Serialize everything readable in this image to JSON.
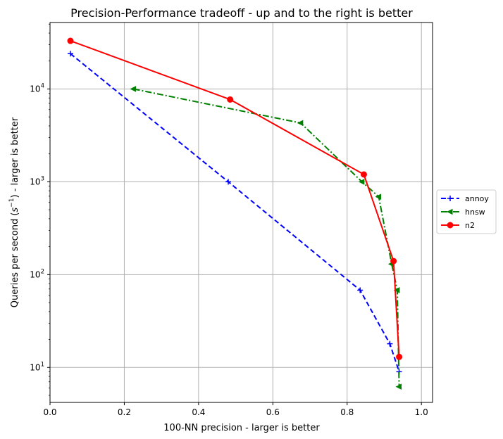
{
  "chart_data": {
    "type": "line",
    "title": "Precision-Performance tradeoff - up and to the right is better",
    "xlabel": "100-NN precision - larger is better",
    "ylabel_main": "Queries per second (",
    "ylabel_sym": "s",
    "ylabel_exp": "−1",
    "ylabel_tail": ") - larger is better",
    "xlim": [
      0.0,
      1.03
    ],
    "ylim": [
      4.2,
      52000
    ],
    "yscale": "log",
    "grid": true,
    "legend_position": "right",
    "x_ticks": [
      {
        "value": 0.0,
        "label": "0.0"
      },
      {
        "value": 0.2,
        "label": "0.2"
      },
      {
        "value": 0.4,
        "label": "0.4"
      },
      {
        "value": 0.6,
        "label": "0.6"
      },
      {
        "value": 0.8,
        "label": "0.8"
      },
      {
        "value": 1.0,
        "label": "1.0"
      }
    ],
    "y_ticks": [
      {
        "value": 10,
        "base": "10",
        "exp": "1"
      },
      {
        "value": 100,
        "base": "10",
        "exp": "2"
      },
      {
        "value": 1000,
        "base": "10",
        "exp": "3"
      },
      {
        "value": 10000,
        "base": "10",
        "exp": "4"
      }
    ],
    "series": [
      {
        "name": "annoy",
        "color": "#0000ff",
        "dash": "dashed",
        "marker": "plus",
        "points": [
          [
            0.055,
            24000
          ],
          [
            0.48,
            1000
          ],
          [
            0.835,
            68
          ],
          [
            0.915,
            18
          ],
          [
            0.94,
            9
          ]
        ]
      },
      {
        "name": "hnsw",
        "color": "#008000",
        "dash": "dashdot",
        "marker": "triangle-left",
        "points": [
          [
            0.225,
            10000
          ],
          [
            0.675,
            4300
          ],
          [
            0.84,
            1000
          ],
          [
            0.885,
            690
          ],
          [
            0.92,
            130
          ],
          [
            0.935,
            68
          ],
          [
            0.94,
            6.2
          ]
        ]
      },
      {
        "name": "n2",
        "color": "#ff0000",
        "dash": "solid",
        "marker": "circle",
        "points": [
          [
            0.055,
            33000
          ],
          [
            0.485,
            7700
          ],
          [
            0.845,
            1200
          ],
          [
            0.925,
            140
          ],
          [
            0.94,
            13
          ]
        ]
      }
    ]
  }
}
